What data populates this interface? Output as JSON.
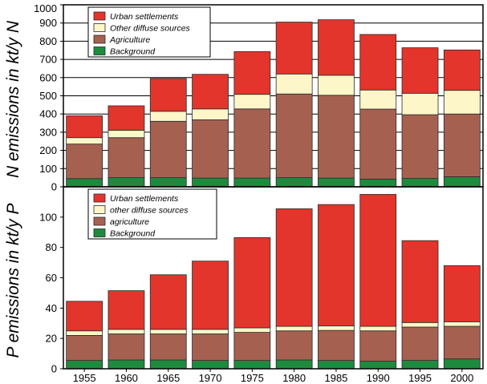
{
  "chart_data": [
    {
      "type": "bar",
      "stacked": true,
      "ylabel": "N emissions in kt/y N",
      "ylim": [
        0,
        1000
      ],
      "yticks": [
        0,
        100,
        200,
        300,
        400,
        500,
        600,
        700,
        800,
        900,
        1000
      ],
      "grid": true,
      "legend_position": "top-left",
      "categories": [
        "1955",
        "1960",
        "1965",
        "1970",
        "1975",
        "1980",
        "1985",
        "1990",
        "1995",
        "2000"
      ],
      "series": [
        {
          "name": "Background",
          "color": "#1e8a3e",
          "values": [
            45,
            50,
            50,
            48,
            48,
            50,
            48,
            42,
            46,
            55
          ]
        },
        {
          "name": "Agriculture",
          "color": "#a66050",
          "values": [
            190,
            220,
            310,
            320,
            380,
            460,
            455,
            385,
            350,
            345
          ]
        },
        {
          "name": "Other diffuse sources",
          "color": "#fcf6c8",
          "values": [
            35,
            40,
            55,
            60,
            80,
            110,
            110,
            105,
            118,
            130
          ]
        },
        {
          "name": "Urban settlements",
          "color": "#e3352b",
          "values": [
            120,
            135,
            180,
            190,
            235,
            285,
            305,
            305,
            250,
            222
          ]
        }
      ]
    },
    {
      "type": "bar",
      "stacked": true,
      "ylabel": "P emissions in kt/y P",
      "ylim": [
        0,
        120
      ],
      "yticks": [
        0,
        20,
        40,
        60,
        80,
        100
      ],
      "grid": false,
      "legend_position": "top-left",
      "categories": [
        "1955",
        "1960",
        "1965",
        "1970",
        "1975",
        "1980",
        "1985",
        "1990",
        "1995",
        "2000"
      ],
      "series": [
        {
          "name": "Background",
          "color": "#1e8a3e",
          "values": [
            5.5,
            5.8,
            5.8,
            5.5,
            5.5,
            5.8,
            5.5,
            5,
            5.5,
            6.5
          ]
        },
        {
          "name": "agriculture",
          "color": "#a66050",
          "values": [
            16.5,
            17.2,
            17.2,
            17.5,
            18.5,
            19.2,
            19.8,
            20,
            22,
            21.5
          ]
        },
        {
          "name": "other diffuse sources",
          "color": "#fcf6c8",
          "values": [
            3,
            3,
            3,
            3,
            3,
            3,
            3,
            3,
            3,
            3
          ]
        },
        {
          "name": "Urban settlements",
          "color": "#e3352b",
          "values": [
            19.5,
            25.5,
            36,
            45,
            59.5,
            77.5,
            80,
            87,
            54,
            37
          ]
        }
      ]
    }
  ]
}
